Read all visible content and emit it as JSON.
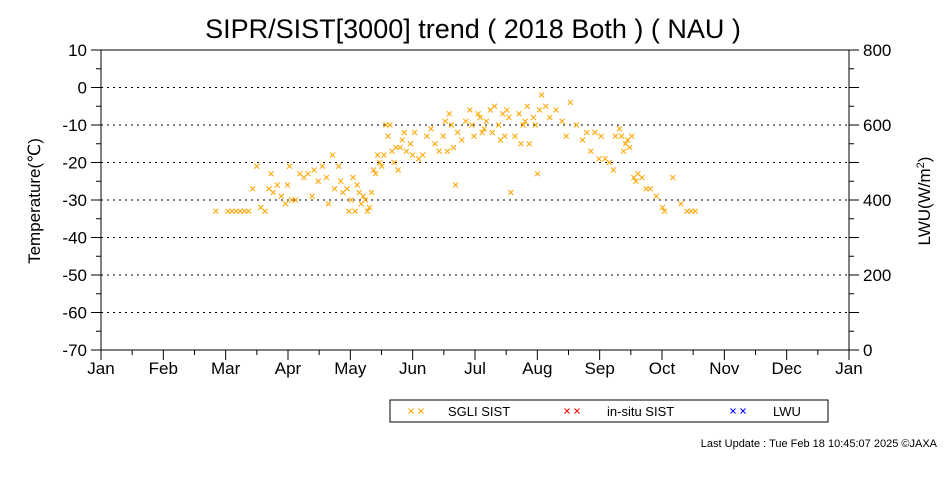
{
  "chart_data": {
    "type": "scatter",
    "title": "SIPR/SIST[3000] trend ( 2018 Both ) ( NAU )",
    "ylabel": "Temperature(℃)",
    "y2label_base": "LWU(W/m",
    "y2label_sup": "2",
    "y2label_close": ")",
    "ylim": [
      -70,
      10
    ],
    "y2lim": [
      0,
      800
    ],
    "yticks": [
      "10",
      "0",
      "-10",
      "-20",
      "-30",
      "-40",
      "-50",
      "-60",
      "-70"
    ],
    "y2ticks": [
      "800",
      "600",
      "400",
      "200",
      "0"
    ],
    "xticks": [
      "Jan",
      "Feb",
      "Mar",
      "Apr",
      "May",
      "Jun",
      "Jul",
      "Aug",
      "Sep",
      "Oct",
      "Nov",
      "Dec",
      "Jan"
    ],
    "grid": "horizontal dotted",
    "series": [
      {
        "name": "SGLI SIST",
        "color": "#ffa500",
        "marker": "x",
        "points": [
          [
            "2018-02-26",
            -33
          ],
          [
            "2018-03-04",
            -33
          ],
          [
            "2018-03-06",
            -33
          ],
          [
            "2018-03-08",
            -33
          ],
          [
            "2018-03-10",
            -33
          ],
          [
            "2018-03-12",
            -33
          ],
          [
            "2018-03-14",
            -33
          ],
          [
            "2018-03-16",
            -27
          ],
          [
            "2018-03-18",
            -21
          ],
          [
            "2018-03-20",
            -32
          ],
          [
            "2018-03-22",
            -33
          ],
          [
            "2018-03-24",
            -27
          ],
          [
            "2018-03-25",
            -23
          ],
          [
            "2018-03-26",
            -28
          ],
          [
            "2018-03-28",
            -26
          ],
          [
            "2018-03-30",
            -29
          ],
          [
            "2018-04-01",
            -31
          ],
          [
            "2018-04-02",
            -26
          ],
          [
            "2018-04-03",
            -21
          ],
          [
            "2018-04-04",
            -30
          ],
          [
            "2018-04-06",
            -30
          ],
          [
            "2018-04-08",
            -23
          ],
          [
            "2018-04-10",
            -24
          ],
          [
            "2018-04-12",
            -23
          ],
          [
            "2018-04-14",
            -29
          ],
          [
            "2018-04-15",
            -22
          ],
          [
            "2018-04-17",
            -25
          ],
          [
            "2018-04-19",
            -21
          ],
          [
            "2018-04-21",
            -24
          ],
          [
            "2018-04-22",
            -31
          ],
          [
            "2018-04-24",
            -18
          ],
          [
            "2018-04-25",
            -27
          ],
          [
            "2018-04-27",
            -21
          ],
          [
            "2018-04-28",
            -25
          ],
          [
            "2018-04-29",
            -28
          ],
          [
            "2018-05-01",
            -27
          ],
          [
            "2018-05-02",
            -33
          ],
          [
            "2018-05-03",
            -30
          ],
          [
            "2018-05-04",
            -24
          ],
          [
            "2018-05-05",
            -33
          ],
          [
            "2018-05-06",
            -26
          ],
          [
            "2018-05-07",
            -28
          ],
          [
            "2018-05-08",
            -31
          ],
          [
            "2018-05-09",
            -29
          ],
          [
            "2018-05-10",
            -30
          ],
          [
            "2018-05-11",
            -33
          ],
          [
            "2018-05-12",
            -32
          ],
          [
            "2018-05-13",
            -28
          ],
          [
            "2018-05-14",
            -22
          ],
          [
            "2018-05-15",
            -23
          ],
          [
            "2018-05-16",
            -18
          ],
          [
            "2018-05-17",
            -20
          ],
          [
            "2018-05-18",
            -21
          ],
          [
            "2018-05-19",
            -18
          ],
          [
            "2018-05-20",
            -10
          ],
          [
            "2018-05-21",
            -13
          ],
          [
            "2018-05-22",
            -10
          ],
          [
            "2018-05-23",
            -17
          ],
          [
            "2018-05-24",
            -20
          ],
          [
            "2018-05-25",
            -16
          ],
          [
            "2018-05-26",
            -22
          ],
          [
            "2018-05-27",
            -16
          ],
          [
            "2018-05-28",
            -14
          ],
          [
            "2018-05-29",
            -12
          ],
          [
            "2018-05-30",
            -17
          ],
          [
            "2018-06-01",
            -15
          ],
          [
            "2018-06-02",
            -18
          ],
          [
            "2018-06-03",
            -12
          ],
          [
            "2018-06-05",
            -19
          ],
          [
            "2018-06-07",
            -18
          ],
          [
            "2018-06-09",
            -13
          ],
          [
            "2018-06-11",
            -11
          ],
          [
            "2018-06-13",
            -15
          ],
          [
            "2018-06-15",
            -17
          ],
          [
            "2018-06-17",
            -13
          ],
          [
            "2018-06-18",
            -9
          ],
          [
            "2018-06-19",
            -17
          ],
          [
            "2018-06-20",
            -7
          ],
          [
            "2018-06-21",
            -10
          ],
          [
            "2018-06-22",
            -16
          ],
          [
            "2018-06-23",
            -26
          ],
          [
            "2018-06-24",
            -12
          ],
          [
            "2018-06-26",
            -14
          ],
          [
            "2018-06-28",
            -9
          ],
          [
            "2018-06-30",
            -6
          ],
          [
            "2018-07-01",
            -10
          ],
          [
            "2018-07-02",
            -13
          ],
          [
            "2018-07-04",
            -7
          ],
          [
            "2018-07-05",
            -8
          ],
          [
            "2018-07-06",
            -12
          ],
          [
            "2018-07-07",
            -11
          ],
          [
            "2018-07-08",
            -9
          ],
          [
            "2018-07-10",
            -6
          ],
          [
            "2018-07-11",
            -12
          ],
          [
            "2018-07-12",
            -5
          ],
          [
            "2018-07-14",
            -10
          ],
          [
            "2018-07-15",
            -14
          ],
          [
            "2018-07-16",
            -7
          ],
          [
            "2018-07-17",
            -13
          ],
          [
            "2018-07-18",
            -6
          ],
          [
            "2018-07-19",
            -8
          ],
          [
            "2018-07-20",
            -28
          ],
          [
            "2018-07-22",
            -13
          ],
          [
            "2018-07-24",
            -7
          ],
          [
            "2018-07-25",
            -15
          ],
          [
            "2018-07-26",
            -10
          ],
          [
            "2018-07-27",
            -9
          ],
          [
            "2018-07-28",
            -5
          ],
          [
            "2018-07-29",
            -15
          ],
          [
            "2018-07-31",
            -8
          ],
          [
            "2018-08-01",
            -10
          ],
          [
            "2018-08-02",
            -23
          ],
          [
            "2018-08-03",
            -6
          ],
          [
            "2018-08-04",
            -2
          ],
          [
            "2018-08-06",
            -5
          ],
          [
            "2018-08-08",
            -8
          ],
          [
            "2018-08-11",
            -6
          ],
          [
            "2018-08-14",
            -9
          ],
          [
            "2018-08-16",
            -13
          ],
          [
            "2018-08-18",
            -4
          ],
          [
            "2018-08-21",
            -10
          ],
          [
            "2018-08-24",
            -14
          ],
          [
            "2018-08-26",
            -12
          ],
          [
            "2018-08-28",
            -17
          ],
          [
            "2018-08-30",
            -12
          ],
          [
            "2018-09-01",
            -19
          ],
          [
            "2018-09-02",
            -13
          ],
          [
            "2018-09-04",
            -19
          ],
          [
            "2018-09-06",
            -20
          ],
          [
            "2018-09-08",
            -22
          ],
          [
            "2018-09-09",
            -13
          ],
          [
            "2018-09-11",
            -11
          ],
          [
            "2018-09-12",
            -13
          ],
          [
            "2018-09-13",
            -17
          ],
          [
            "2018-09-14",
            -15
          ],
          [
            "2018-09-15",
            -14
          ],
          [
            "2018-09-16",
            -16
          ],
          [
            "2018-09-17",
            -13
          ],
          [
            "2018-09-18",
            -24
          ],
          [
            "2018-09-19",
            -25
          ],
          [
            "2018-09-20",
            -23
          ],
          [
            "2018-09-22",
            -24
          ],
          [
            "2018-09-24",
            -27
          ],
          [
            "2018-09-26",
            -27
          ],
          [
            "2018-09-29",
            -29
          ],
          [
            "2018-10-02",
            -32
          ],
          [
            "2018-10-03",
            -33
          ],
          [
            "2018-10-07",
            -24
          ],
          [
            "2018-10-11",
            -31
          ],
          [
            "2018-10-14",
            -33
          ],
          [
            "2018-10-16",
            -33
          ],
          [
            "2018-10-18",
            -33
          ]
        ]
      },
      {
        "name": "in-situ SIST",
        "color": "#ff0000",
        "marker": "x",
        "points": []
      },
      {
        "name": "LWU",
        "color": "#0000ff",
        "marker": "x",
        "points": []
      }
    ]
  },
  "footer": "Last Update : Tue Feb 18 10:45:07 2025  ©JAXA"
}
